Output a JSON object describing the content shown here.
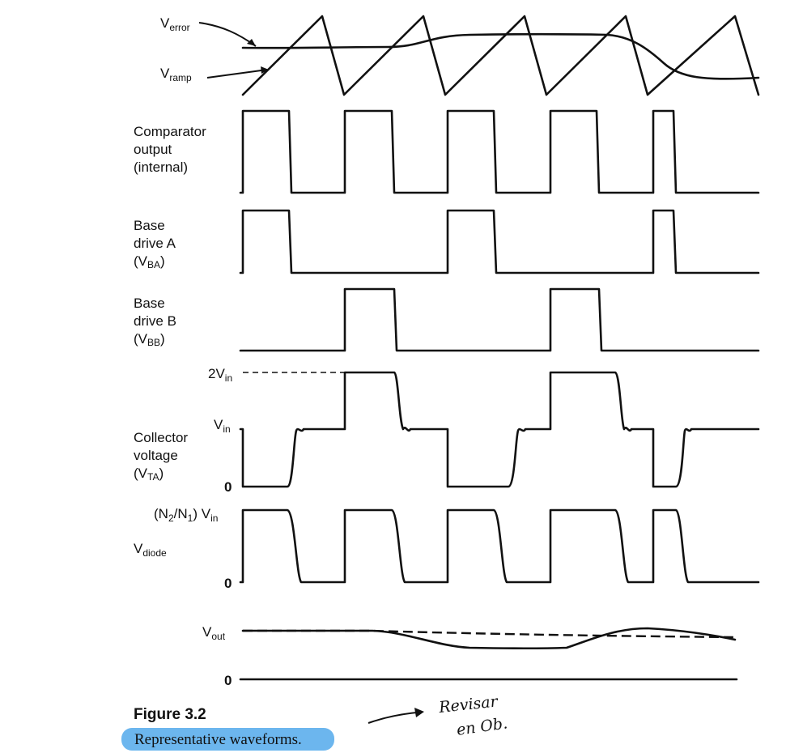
{
  "labels": {
    "v_error": "V",
    "v_error_sub": "error",
    "v_ramp": "V",
    "v_ramp_sub": "ramp",
    "comparator": [
      "Comparator",
      "output",
      "(internal)"
    ],
    "base_a": [
      "Base",
      "drive A",
      "(V",
      "BA",
      ")"
    ],
    "base_b": [
      "Base",
      "drive B",
      "(V",
      "BB",
      ")"
    ],
    "collector": [
      "Collector",
      "voltage",
      "(V",
      "TA",
      ")"
    ],
    "two_vin": "2V",
    "two_vin_sub": "in",
    "vin": "V",
    "vin_sub": "in",
    "zero": "0",
    "n_ratio_a": "(N",
    "n_ratio_2": "2",
    "n_ratio_slash": "/N",
    "n_ratio_1": "1",
    "n_ratio_b": ") V",
    "n_ratio_sub": "in",
    "vdiode": "V",
    "vdiode_sub": "diode",
    "vout": "V",
    "vout_sub": "out"
  },
  "figure": {
    "number": "Figure 3.2",
    "caption": "Representative waveforms."
  },
  "annotation": {
    "line1": "Revisar",
    "line2": "en Ob."
  }
}
